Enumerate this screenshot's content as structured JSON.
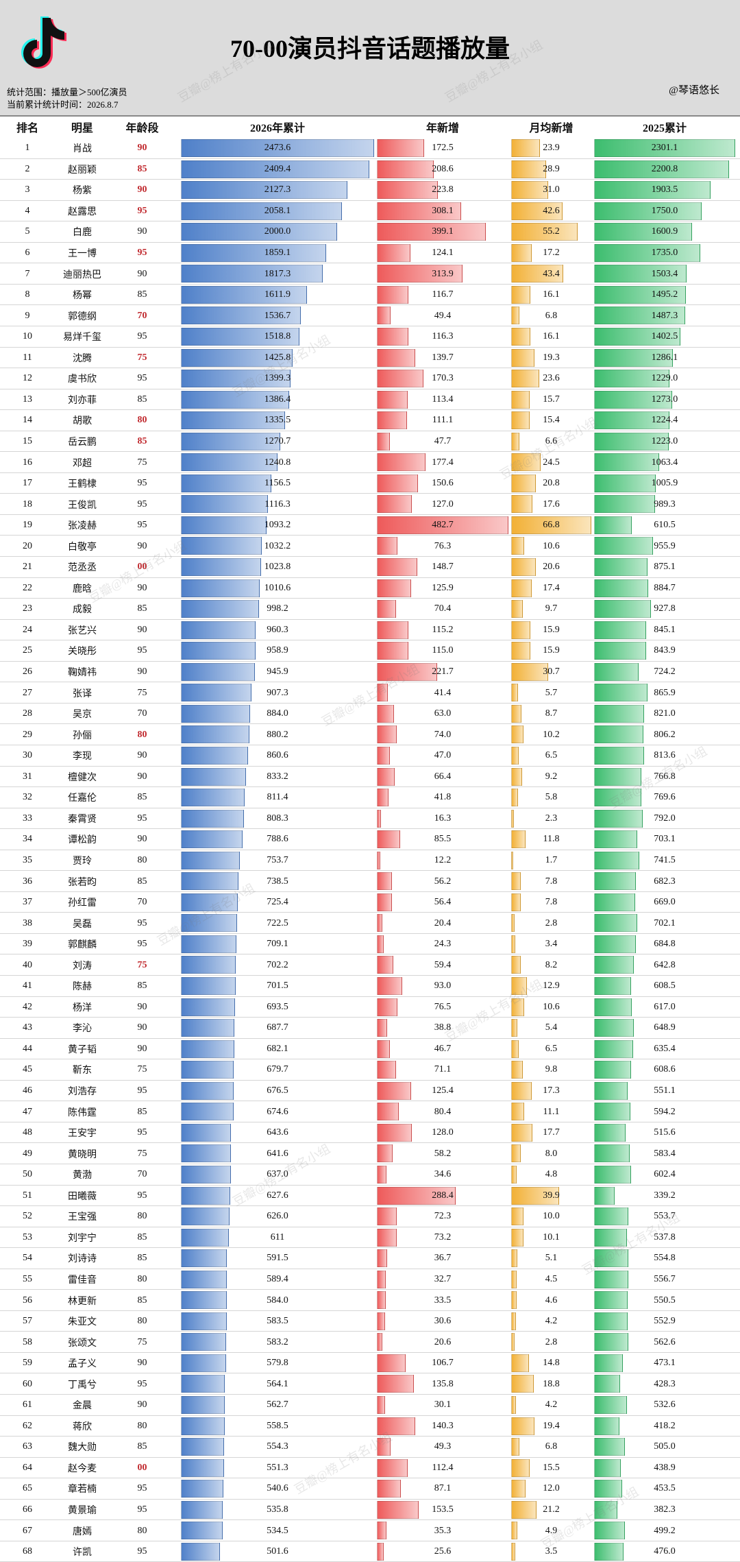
{
  "header": {
    "title": "70-00演员抖音话题播放量",
    "scope": "统计范围：播放量＞500亿演员",
    "date": "当前累计统计时间：2026.8.7",
    "author": "@琴语悠长",
    "watermark": "豆瓣@榜上有名小组"
  },
  "table": {
    "columns": [
      "排名",
      "明星",
      "年龄段",
      "2026年累计",
      "年新增",
      "月均新增",
      "2025累计"
    ],
    "bar_colors": {
      "3": "#4f80c9",
      "4": "#ee5a5a",
      "5": "#f2b035",
      "6": "#3cbd6e"
    },
    "age_highlight": {
      "color": "#c0282d",
      "rows": [
        0,
        1,
        2,
        3,
        5,
        8,
        10,
        13,
        14,
        20,
        28,
        39,
        63
      ]
    },
    "rows": [
      [
        1,
        "肖战",
        "90",
        2473.6,
        172.5,
        23.9,
        2301.1
      ],
      [
        2,
        "赵丽颖",
        "85",
        2409.4,
        208.6,
        28.9,
        2200.8
      ],
      [
        3,
        "杨紫",
        "90",
        2127.3,
        223.8,
        {
          "value": 31,
          "label": "31.0"
        },
        1903.5
      ],
      [
        4,
        "赵露思",
        "95",
        2058.1,
        308.1,
        42.6,
        {
          "value": 1750,
          "label": "1750.0"
        }
      ],
      [
        5,
        "白鹿",
        "90",
        {
          "value": 2000,
          "label": "2000.0"
        },
        399.1,
        55.2,
        1600.9
      ],
      [
        6,
        "王一博",
        "95",
        1859.1,
        124.1,
        17.2,
        {
          "value": 1735,
          "label": "1735.0"
        }
      ],
      [
        7,
        "迪丽热巴",
        "90",
        1817.3,
        313.9,
        43.4,
        1503.4
      ],
      [
        8,
        "杨幂",
        "85",
        1611.9,
        116.7,
        16.1,
        1495.2
      ],
      [
        9,
        "郭德纲",
        "70",
        1536.7,
        49.4,
        6.8,
        1487.3
      ],
      [
        10,
        "易烊千玺",
        "95",
        1518.8,
        116.3,
        16.1,
        1402.5
      ],
      [
        11,
        "沈腾",
        "75",
        1425.8,
        139.7,
        19.3,
        1286.1
      ],
      [
        12,
        "虞书欣",
        "95",
        1399.3,
        170.3,
        23.6,
        {
          "value": 1229,
          "label": "1229.0"
        }
      ],
      [
        13,
        "刘亦菲",
        "85",
        1386.4,
        113.4,
        15.7,
        {
          "value": 1273,
          "label": "1273.0"
        }
      ],
      [
        14,
        "胡歌",
        "80",
        1335.5,
        111.1,
        15.4,
        1224.4
      ],
      [
        15,
        "岳云鹏",
        "85",
        1270.7,
        47.7,
        6.6,
        {
          "value": 1223,
          "label": "1223.0"
        }
      ],
      [
        16,
        "邓超",
        "75",
        1240.8,
        177.4,
        24.5,
        1063.4
      ],
      [
        17,
        "王鹤棣",
        "95",
        1156.5,
        150.6,
        20.8,
        1005.9
      ],
      [
        18,
        "王俊凯",
        "95",
        1116.3,
        {
          "value": 127,
          "label": "127.0"
        },
        17.6,
        989.3
      ],
      [
        19,
        "张凌赫",
        "95",
        1093.2,
        482.7,
        66.8,
        610.5
      ],
      [
        20,
        "白敬亭",
        "90",
        1032.2,
        76.3,
        10.6,
        955.9
      ],
      [
        21,
        "范丞丞",
        "00",
        1023.8,
        148.7,
        20.6,
        875.1
      ],
      [
        22,
        "鹿晗",
        "90",
        1010.6,
        125.9,
        17.4,
        884.7
      ],
      [
        23,
        "成毅",
        "85",
        998.2,
        70.4,
        9.7,
        927.8
      ],
      [
        24,
        "张艺兴",
        "90",
        960.3,
        115.2,
        15.9,
        845.1
      ],
      [
        25,
        "关晓彤",
        "95",
        958.9,
        {
          "value": 115,
          "label": "115.0"
        },
        15.9,
        843.9
      ],
      [
        26,
        "鞠婧祎",
        "90",
        945.9,
        221.7,
        30.7,
        724.2
      ],
      [
        27,
        "张译",
        "75",
        907.3,
        41.4,
        5.7,
        865.9
      ],
      [
        28,
        "吴京",
        "70",
        {
          "value": 884,
          "label": "884.0"
        },
        {
          "value": 63,
          "label": "63.0"
        },
        8.7,
        {
          "value": 821,
          "label": "821.0"
        }
      ],
      [
        29,
        "孙俪",
        "80",
        880.2,
        {
          "value": 74,
          "label": "74.0"
        },
        10.2,
        806.2
      ],
      [
        30,
        "李现",
        "90",
        860.6,
        {
          "value": 47,
          "label": "47.0"
        },
        6.5,
        813.6
      ],
      [
        31,
        "檀健次",
        "90",
        833.2,
        66.4,
        9.2,
        766.8
      ],
      [
        32,
        "任嘉伦",
        "85",
        811.4,
        41.8,
        5.8,
        769.6
      ],
      [
        33,
        "秦霄贤",
        "95",
        808.3,
        16.3,
        2.3,
        {
          "value": 792,
          "label": "792.0"
        }
      ],
      [
        34,
        "谭松韵",
        "90",
        788.6,
        85.5,
        11.8,
        703.1
      ],
      [
        35,
        "贾玲",
        "80",
        753.7,
        12.2,
        1.7,
        741.5
      ],
      [
        36,
        "张若昀",
        "85",
        738.5,
        56.2,
        7.8,
        682.3
      ],
      [
        37,
        "孙红雷",
        "70",
        725.4,
        56.4,
        7.8,
        {
          "value": 669,
          "label": "669.0"
        }
      ],
      [
        38,
        "吴磊",
        "95",
        722.5,
        20.4,
        2.8,
        702.1
      ],
      [
        39,
        "郭麒麟",
        "95",
        709.1,
        24.3,
        3.4,
        684.8
      ],
      [
        40,
        "刘涛",
        "75",
        702.2,
        59.4,
        8.2,
        642.8
      ],
      [
        41,
        "陈赫",
        "85",
        701.5,
        {
          "value": 93,
          "label": "93.0"
        },
        12.9,
        608.5
      ],
      [
        42,
        "杨洋",
        "90",
        693.5,
        76.5,
        10.6,
        {
          "value": 617,
          "label": "617.0"
        }
      ],
      [
        43,
        "李沁",
        "90",
        687.7,
        38.8,
        5.4,
        648.9
      ],
      [
        44,
        "黄子韬",
        "90",
        682.1,
        46.7,
        6.5,
        635.4
      ],
      [
        45,
        "靳东",
        "75",
        679.7,
        71.1,
        9.8,
        608.6
      ],
      [
        46,
        "刘浩存",
        "95",
        676.5,
        125.4,
        17.3,
        551.1
      ],
      [
        47,
        "陈伟霆",
        "85",
        674.6,
        80.4,
        11.1,
        594.2
      ],
      [
        48,
        "王安宇",
        "95",
        643.6,
        {
          "value": 128,
          "label": "128.0"
        },
        17.7,
        515.6
      ],
      [
        49,
        "黄晓明",
        "75",
        641.6,
        58.2,
        {
          "value": 8,
          "label": "8.0"
        },
        583.4
      ],
      [
        50,
        "黄渤",
        "70",
        {
          "value": 637,
          "label": "637.0"
        },
        34.6,
        4.8,
        602.4
      ],
      [
        51,
        "田曦薇",
        "95",
        627.6,
        288.4,
        39.9,
        339.2
      ],
      [
        52,
        "王宝强",
        "80",
        {
          "value": 626,
          "label": "626.0"
        },
        72.3,
        {
          "value": 10,
          "label": "10.0"
        },
        553.7
      ],
      [
        53,
        "刘宇宁",
        "85",
        611.0,
        73.2,
        10.1,
        537.8
      ],
      [
        54,
        "刘诗诗",
        "85",
        591.5,
        36.7,
        5.1,
        554.8
      ],
      [
        55,
        "雷佳音",
        "80",
        589.4,
        32.7,
        4.5,
        556.7
      ],
      [
        56,
        "林更新",
        "85",
        {
          "value": 584,
          "label": "584.0"
        },
        33.5,
        4.6,
        550.5
      ],
      [
        57,
        "朱亚文",
        "80",
        583.5,
        30.6,
        4.2,
        552.9
      ],
      [
        58,
        "张颂文",
        "75",
        583.2,
        20.6,
        2.8,
        562.6
      ],
      [
        59,
        "孟子义",
        "90",
        579.8,
        106.7,
        14.8,
        473.1
      ],
      [
        60,
        "丁禹兮",
        "95",
        564.1,
        135.8,
        18.8,
        428.3
      ],
      [
        61,
        "金晨",
        "90",
        562.7,
        30.1,
        4.2,
        532.6
      ],
      [
        62,
        "蒋欣",
        "80",
        558.5,
        140.3,
        19.4,
        418.2
      ],
      [
        63,
        "魏大勋",
        "85",
        554.3,
        49.3,
        6.8,
        {
          "value": 505,
          "label": "505.0"
        }
      ],
      [
        64,
        "赵今麦",
        "00",
        551.3,
        112.4,
        15.5,
        438.9
      ],
      [
        65,
        "章若楠",
        "95",
        540.6,
        87.1,
        {
          "value": 12,
          "label": "12.0"
        },
        453.5
      ],
      [
        66,
        "黄景瑜",
        "95",
        535.8,
        153.5,
        21.2,
        382.3
      ],
      [
        67,
        "唐嫣",
        "80",
        534.5,
        35.3,
        4.9,
        499.2
      ],
      [
        68,
        "许凯",
        "95",
        501.6,
        25.6,
        3.5,
        {
          "value": 476,
          "label": "476.0"
        }
      ]
    ]
  }
}
